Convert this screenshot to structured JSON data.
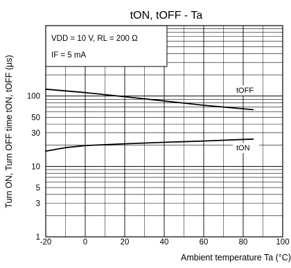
{
  "chart_data": {
    "type": "line",
    "title": "tON, tOFF - Ta",
    "xlabel": "Ambient temperature Ta (°C)",
    "ylabel": "Turn ON, Turn OFF time tON, tOFF (µs)",
    "xlim": [
      -20,
      100
    ],
    "ylim": [
      1,
      1000
    ],
    "y_scale": "log",
    "grid": true,
    "x_ticks": [
      "-20",
      "0",
      "20",
      "40",
      "60",
      "80",
      "100"
    ],
    "y_ticks": [
      {
        "label": "1",
        "value": 1
      },
      {
        "label": "3",
        "value": 3
      },
      {
        "label": "5",
        "value": 5
      },
      {
        "label": "10",
        "value": 10
      },
      {
        "label": "30",
        "value": 30
      },
      {
        "label": "50",
        "value": 50
      },
      {
        "label": "100",
        "value": 100
      }
    ],
    "conditions": {
      "line1": "VDD = 10 V, RL = 200 Ω",
      "line2": "IF = 5 mA"
    },
    "series": [
      {
        "name": "tOFF",
        "x": [
          -20,
          0,
          20,
          40,
          60,
          85
        ],
        "y": [
          125,
          112,
          98,
          85,
          74,
          64
        ]
      },
      {
        "name": "tON",
        "x": [
          -20,
          -10,
          0,
          20,
          40,
          60,
          85
        ],
        "y": [
          16.5,
          18.5,
          19.8,
          21,
          22,
          23,
          24.5
        ]
      }
    ]
  }
}
